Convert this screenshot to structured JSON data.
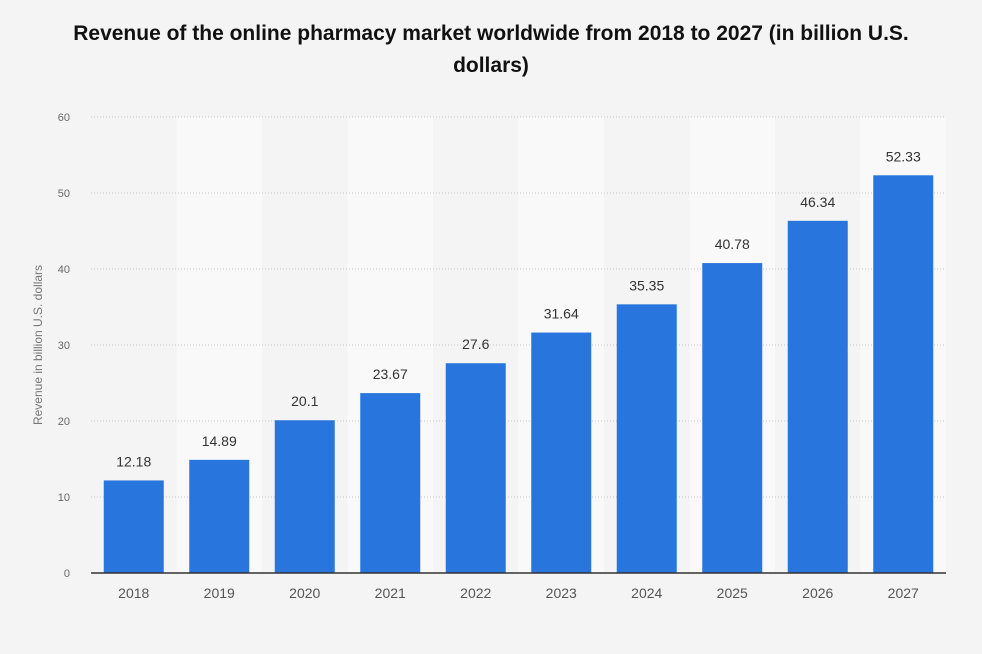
{
  "chart_data": {
    "type": "bar",
    "title": "Revenue of the online pharmacy market worldwide from 2018 to 2027 (in billion U.S. dollars)",
    "xlabel": "",
    "ylabel": "Revenue in billion U.S. dollars",
    "categories": [
      "2018",
      "2019",
      "2020",
      "2021",
      "2022",
      "2023",
      "2024",
      "2025",
      "2026",
      "2027"
    ],
    "values": [
      12.18,
      14.89,
      20.1,
      23.67,
      27.6,
      31.64,
      35.35,
      40.78,
      46.34,
      52.33
    ],
    "value_labels": [
      "12.18",
      "14.89",
      "20.1",
      "23.67",
      "27.6",
      "31.64",
      "35.35",
      "40.78",
      "46.34",
      "52.33"
    ],
    "ylim": [
      0,
      60
    ],
    "yticks": [
      0,
      10,
      20,
      30,
      40,
      50,
      60
    ],
    "grid": true,
    "legend": "none",
    "colors": {
      "bar": "#2876dd",
      "band": "#f9f9f9",
      "background": "#f4f4f4",
      "grid": "#c8c8c8",
      "axis": "#333333"
    }
  }
}
